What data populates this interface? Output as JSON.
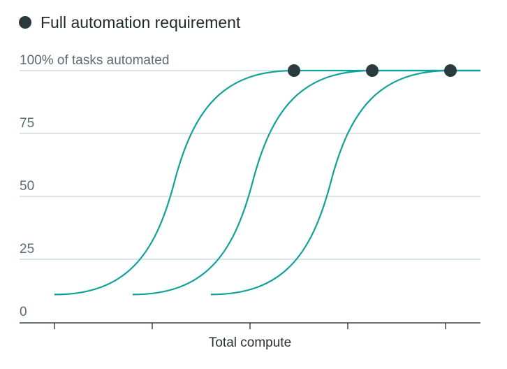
{
  "chart_data": {
    "type": "line",
    "title": "",
    "xlabel": "Total compute",
    "ylabel": "",
    "ylim": [
      0,
      100
    ],
    "x_tick_count": 5,
    "y_ticks": [
      {
        "value": 100,
        "label": "100% of tasks automated"
      },
      {
        "value": 75,
        "label": "75"
      },
      {
        "value": 50,
        "label": "50"
      },
      {
        "value": 25,
        "label": "25"
      },
      {
        "value": 0,
        "label": "0"
      }
    ],
    "legend": {
      "label": "Full automation requirement",
      "marker": "dot",
      "placement": "top-left"
    },
    "curve_shape": "sigmoid",
    "start_percent": 11,
    "series": [
      {
        "x_start": 0.0,
        "x_end": 2.45,
        "values_note": "",
        "color": "#12a29a"
      },
      {
        "x_start": 0.8,
        "x_end": 3.25,
        "color": "#12a29a"
      },
      {
        "x_start": 1.6,
        "x_end": 4.05,
        "color": "#12a29a"
      }
    ],
    "grid": true,
    "colors": {
      "line": "#12a29a",
      "marker": "#2b3a3f",
      "grid": "#cfdcdb",
      "axis": "#39474a",
      "text": "#5b6a6d"
    }
  }
}
